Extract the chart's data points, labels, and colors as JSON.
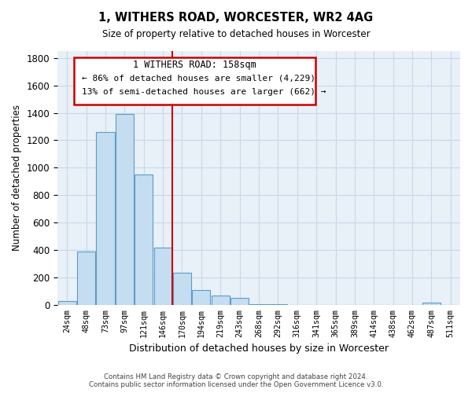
{
  "title": "1, WITHERS ROAD, WORCESTER, WR2 4AG",
  "subtitle": "Size of property relative to detached houses in Worcester",
  "xlabel": "Distribution of detached houses by size in Worcester",
  "ylabel": "Number of detached properties",
  "categories": [
    "24sqm",
    "48sqm",
    "73sqm",
    "97sqm",
    "121sqm",
    "146sqm",
    "170sqm",
    "194sqm",
    "219sqm",
    "243sqm",
    "268sqm",
    "292sqm",
    "316sqm",
    "341sqm",
    "365sqm",
    "389sqm",
    "414sqm",
    "438sqm",
    "462sqm",
    "487sqm",
    "511sqm"
  ],
  "values": [
    25,
    390,
    1260,
    1390,
    950,
    420,
    235,
    110,
    65,
    50,
    5,
    5,
    0,
    0,
    0,
    0,
    0,
    0,
    0,
    15,
    0
  ],
  "bar_color": "#c5ddf0",
  "bar_edge_color": "#5a9dc8",
  "vline_x": 5.5,
  "vline_color": "#cc0000",
  "annotation_title": "1 WITHERS ROAD: 158sqm",
  "annotation_line1": "← 86% of detached houses are smaller (4,229)",
  "annotation_line2": "13% of semi-detached houses are larger (662) →",
  "annotation_box_color": "#cc0000",
  "ylim": [
    0,
    1850
  ],
  "yticks": [
    0,
    200,
    400,
    600,
    800,
    1000,
    1200,
    1400,
    1600,
    1800
  ],
  "footnote1": "Contains HM Land Registry data © Crown copyright and database right 2024.",
  "footnote2": "Contains public sector information licensed under the Open Government Licence v3.0.",
  "background_color": "#ffffff",
  "grid_color": "#c8d8e8",
  "plot_bg_color": "#e8f0f8"
}
